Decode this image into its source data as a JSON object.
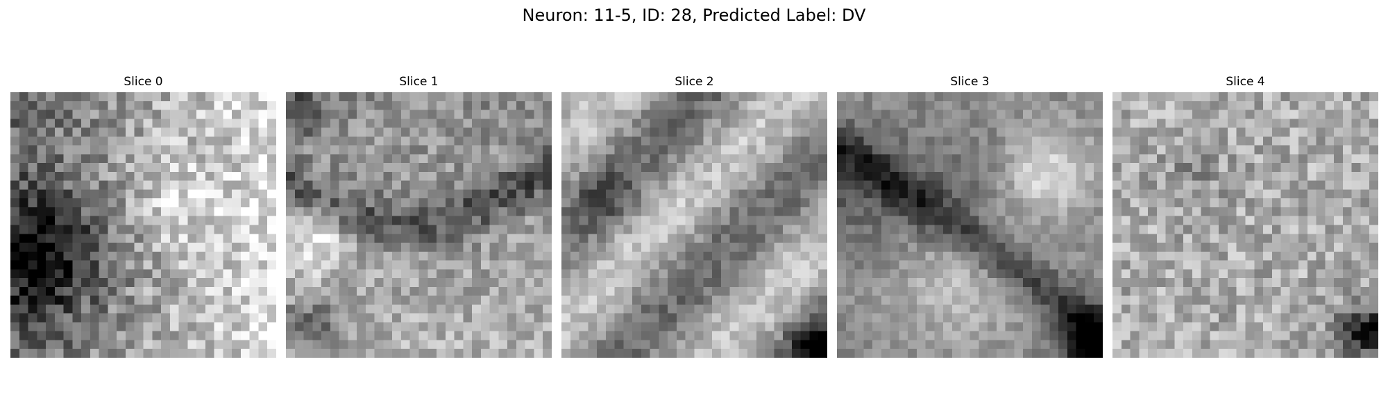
{
  "figure": {
    "title": "Neuron: 11-5, ID: 28, Predicted Label: DV",
    "colormap": "gray"
  },
  "panels": [
    {
      "title": "Slice 0"
    },
    {
      "title": "Slice 1"
    },
    {
      "title": "Slice 2"
    },
    {
      "title": "Slice 3"
    },
    {
      "title": "Slice 4"
    }
  ]
}
